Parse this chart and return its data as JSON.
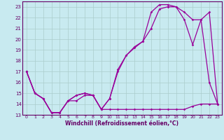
{
  "xlabel": "Windchill (Refroidissement éolien,°C)",
  "bg_color": "#c8eaf0",
  "line_color": "#990099",
  "grid_color": "#aacccc",
  "axis_color": "#660066",
  "spine_color": "#660066",
  "xlim": [
    -0.5,
    23.5
  ],
  "ylim": [
    13,
    23.5
  ],
  "xticks": [
    0,
    1,
    2,
    3,
    4,
    5,
    6,
    7,
    8,
    9,
    10,
    11,
    12,
    13,
    14,
    15,
    16,
    17,
    18,
    19,
    20,
    21,
    22,
    23
  ],
  "yticks": [
    13,
    14,
    15,
    16,
    17,
    18,
    19,
    20,
    21,
    22,
    23
  ],
  "series1_x": [
    0,
    1,
    2,
    3,
    4,
    5,
    6,
    7,
    8,
    9,
    10,
    11,
    12,
    13,
    14,
    15,
    16,
    17,
    18,
    19,
    20,
    21,
    22,
    23
  ],
  "series1_y": [
    17,
    15,
    14.5,
    13.2,
    13.2,
    14.3,
    14.3,
    14.8,
    14.8,
    13.5,
    13.5,
    13.5,
    13.5,
    13.5,
    13.5,
    13.5,
    13.5,
    13.5,
    13.5,
    13.5,
    13.8,
    14.0,
    14.0,
    14.0
  ],
  "series2_x": [
    0,
    1,
    2,
    3,
    4,
    5,
    6,
    7,
    8,
    9,
    10,
    11,
    12,
    13,
    14,
    15,
    16,
    17,
    18,
    19,
    20,
    21,
    22,
    23
  ],
  "series2_y": [
    17,
    15,
    14.5,
    13.2,
    13.2,
    14.3,
    14.8,
    15.0,
    14.8,
    13.5,
    14.5,
    17.0,
    18.5,
    19.2,
    19.8,
    21.0,
    22.8,
    23.0,
    23.0,
    22.5,
    21.8,
    21.8,
    16.0,
    14.0
  ],
  "series3_x": [
    0,
    1,
    2,
    3,
    4,
    5,
    6,
    7,
    8,
    9,
    10,
    11,
    12,
    13,
    14,
    15,
    16,
    17,
    18,
    19,
    20,
    21,
    22,
    23
  ],
  "series3_y": [
    17,
    15,
    14.5,
    13.2,
    13.2,
    14.3,
    14.8,
    15.0,
    14.8,
    13.5,
    14.5,
    17.2,
    18.5,
    19.3,
    19.8,
    22.5,
    23.2,
    23.2,
    23.0,
    21.8,
    19.5,
    21.8,
    22.5,
    14.0
  ]
}
